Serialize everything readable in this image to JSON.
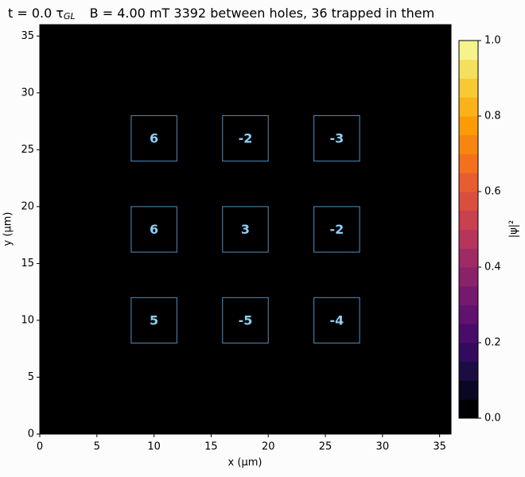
{
  "chart_data": {
    "type": "heatmap",
    "title": {
      "time": "t =    0.0 τ",
      "time_sub": "GL",
      "rest": "B = 4.00 mT    3392 between holes, 36 trapped in them"
    },
    "x_label": "x (µm)",
    "y_label": "y (µm)",
    "xlim": [
      0,
      36
    ],
    "ylim": [
      0,
      36
    ],
    "xticks": [
      0,
      5,
      10,
      15,
      20,
      25,
      30,
      35
    ],
    "yticks": [
      0,
      5,
      10,
      15,
      20,
      25,
      30,
      35
    ],
    "holes": [
      {
        "x": [
          8,
          12
        ],
        "y": [
          24,
          28
        ],
        "value": 6
      },
      {
        "x": [
          16,
          20
        ],
        "y": [
          24,
          28
        ],
        "value": -2
      },
      {
        "x": [
          24,
          28
        ],
        "y": [
          24,
          28
        ],
        "value": -3
      },
      {
        "x": [
          8,
          12
        ],
        "y": [
          16,
          20
        ],
        "value": 6
      },
      {
        "x": [
          16,
          20
        ],
        "y": [
          16,
          20
        ],
        "value": 3
      },
      {
        "x": [
          24,
          28
        ],
        "y": [
          16,
          20
        ],
        "value": -2
      },
      {
        "x": [
          8,
          12
        ],
        "y": [
          8,
          12
        ],
        "value": 5
      },
      {
        "x": [
          16,
          20
        ],
        "y": [
          8,
          12
        ],
        "value": -5
      },
      {
        "x": [
          24,
          28
        ],
        "y": [
          8,
          12
        ],
        "value": -4
      }
    ],
    "hole_color": "#4f8fc4",
    "field_color": "#000000",
    "colorbar_label": "|ψ|²",
    "clim": [
      0,
      1
    ],
    "cticks": [
      {
        "value": 0,
        "label": "0.0"
      },
      {
        "value": 0.2,
        "label": "0.2"
      },
      {
        "value": 0.4,
        "label": "0.4"
      },
      {
        "value": 0.6,
        "label": "0.6"
      },
      {
        "value": 0.8,
        "label": "0.8"
      },
      {
        "value": 1,
        "label": "1.0"
      }
    ],
    "colormap": [
      "#000004",
      "#0a0722",
      "#1b0c41",
      "#320a5e",
      "#4a0c6b",
      "#5f136e",
      "#75196e",
      "#8a226a",
      "#a02a63",
      "#b5365a",
      "#c9404e",
      "#da4e3e",
      "#e85d2f",
      "#f3711d",
      "#f8850f",
      "#fb9b06",
      "#fbb21a",
      "#f8c932",
      "#f3e05c",
      "#f6f38c"
    ]
  }
}
